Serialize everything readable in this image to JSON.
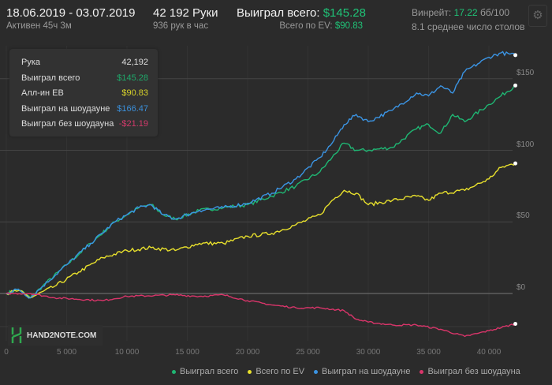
{
  "header": {
    "date_range": "18.06.2019 - 03.07.2019",
    "active": "Активен 45ч 3м",
    "hands": "42 192 Руки",
    "hands_per_hour": "936 рук в час",
    "won_label": "Выиграл всего:",
    "won_value": "$145.28",
    "ev_label": "Всего по EV:",
    "ev_value": "$90.83",
    "winrate_label": "Винрейт:",
    "winrate_value": "17.22",
    "winrate_unit": "бб/100",
    "tables": "8.1 среднее число столов"
  },
  "tooltip": {
    "rows": [
      {
        "label": "Рука",
        "value": "42,192",
        "color": "#dddddd"
      },
      {
        "label": "Выиграл всего",
        "value": "$145.28",
        "color": "#1fa86a"
      },
      {
        "label": "Алл-ин EB",
        "value": "$90.83",
        "color": "#d7d22a"
      },
      {
        "label": "Выиграл на шоудауне",
        "value": "$166.47",
        "color": "#3b8fd9"
      },
      {
        "label": "Выиграл без шоудауна",
        "value": "-$21.19",
        "color": "#d03a6a"
      }
    ]
  },
  "logo": "HAND2NOTE.COM",
  "chart_data": {
    "type": "line",
    "xlim": [
      0,
      42192
    ],
    "ylim": [
      -25,
      170
    ],
    "x_ticks": [
      {
        "v": 0,
        "label": "0"
      },
      {
        "v": 5000,
        "label": "5 000"
      },
      {
        "v": 10000,
        "label": "10 000"
      },
      {
        "v": 15000,
        "label": "15 000"
      },
      {
        "v": 20000,
        "label": "20 000"
      },
      {
        "v": 25000,
        "label": "25 000"
      },
      {
        "v": 30000,
        "label": "30 000"
      },
      {
        "v": 35000,
        "label": "35 000"
      },
      {
        "v": 40000,
        "label": "40 000"
      }
    ],
    "y_ticks": [
      {
        "v": 0,
        "label": "$0"
      },
      {
        "v": 50,
        "label": "$50"
      },
      {
        "v": 100,
        "label": "$100"
      },
      {
        "v": 150,
        "label": "$150"
      }
    ],
    "series": [
      {
        "name": "Выиграл всего",
        "color": "#1fb673",
        "points": [
          [
            0,
            0
          ],
          [
            1000,
            3
          ],
          [
            2000,
            -3
          ],
          [
            3000,
            5
          ],
          [
            5000,
            20
          ],
          [
            7000,
            35
          ],
          [
            9000,
            50
          ],
          [
            10000,
            55
          ],
          [
            11000,
            60
          ],
          [
            12000,
            62
          ],
          [
            13000,
            55
          ],
          [
            14000,
            52
          ],
          [
            16000,
            58
          ],
          [
            18000,
            60
          ],
          [
            20000,
            62
          ],
          [
            22000,
            68
          ],
          [
            24000,
            75
          ],
          [
            26000,
            85
          ],
          [
            27000,
            95
          ],
          [
            28000,
            105
          ],
          [
            29000,
            100
          ],
          [
            30000,
            100
          ],
          [
            32000,
            102
          ],
          [
            34000,
            115
          ],
          [
            35000,
            118
          ],
          [
            36000,
            112
          ],
          [
            37000,
            125
          ],
          [
            38000,
            120
          ],
          [
            40000,
            132
          ],
          [
            41000,
            138
          ],
          [
            42192,
            145.28
          ]
        ]
      },
      {
        "name": "Всего по EV",
        "color": "#e8e02c",
        "points": [
          [
            0,
            0
          ],
          [
            1000,
            2
          ],
          [
            2000,
            -3
          ],
          [
            4000,
            5
          ],
          [
            6000,
            15
          ],
          [
            8000,
            25
          ],
          [
            10000,
            30
          ],
          [
            12000,
            32
          ],
          [
            14000,
            30
          ],
          [
            16000,
            35
          ],
          [
            18000,
            35
          ],
          [
            20000,
            40
          ],
          [
            22000,
            42
          ],
          [
            24000,
            48
          ],
          [
            26000,
            55
          ],
          [
            27000,
            65
          ],
          [
            28000,
            72
          ],
          [
            29000,
            70
          ],
          [
            30000,
            62
          ],
          [
            32000,
            65
          ],
          [
            34000,
            68
          ],
          [
            35000,
            65
          ],
          [
            36000,
            70
          ],
          [
            38000,
            72
          ],
          [
            40000,
            80
          ],
          [
            41000,
            88
          ],
          [
            42192,
            90.83
          ]
        ]
      },
      {
        "name": "Выиграл на шоудауне",
        "color": "#3b94e3",
        "points": [
          [
            0,
            0
          ],
          [
            1000,
            3
          ],
          [
            2000,
            -3
          ],
          [
            3000,
            5
          ],
          [
            5000,
            20
          ],
          [
            7000,
            35
          ],
          [
            9000,
            50
          ],
          [
            10000,
            55
          ],
          [
            11000,
            60
          ],
          [
            12000,
            62
          ],
          [
            13000,
            55
          ],
          [
            14000,
            52
          ],
          [
            16000,
            58
          ],
          [
            18000,
            60
          ],
          [
            20000,
            63
          ],
          [
            22000,
            70
          ],
          [
            24000,
            80
          ],
          [
            26000,
            95
          ],
          [
            27000,
            105
          ],
          [
            28000,
            118
          ],
          [
            29000,
            125
          ],
          [
            30000,
            120
          ],
          [
            32000,
            128
          ],
          [
            34000,
            140
          ],
          [
            35000,
            138
          ],
          [
            36000,
            145
          ],
          [
            37000,
            140
          ],
          [
            38000,
            155
          ],
          [
            40000,
            165
          ],
          [
            41000,
            168
          ],
          [
            42192,
            166.47
          ]
        ]
      },
      {
        "name": "Выиграл без шоудауна",
        "color": "#d9356a",
        "points": [
          [
            0,
            0
          ],
          [
            2000,
            0
          ],
          [
            4000,
            -3
          ],
          [
            8000,
            -5
          ],
          [
            10000,
            -2
          ],
          [
            14000,
            -1
          ],
          [
            16000,
            -2
          ],
          [
            18000,
            -1
          ],
          [
            20000,
            -5
          ],
          [
            22000,
            -8
          ],
          [
            24000,
            -10
          ],
          [
            26000,
            -10
          ],
          [
            28000,
            -12
          ],
          [
            29000,
            -18
          ],
          [
            30000,
            -20
          ],
          [
            32000,
            -22
          ],
          [
            34000,
            -22
          ],
          [
            36000,
            -25
          ],
          [
            38000,
            -30
          ],
          [
            39000,
            -28
          ],
          [
            40000,
            -26
          ],
          [
            42192,
            -21.19
          ]
        ]
      }
    ]
  }
}
